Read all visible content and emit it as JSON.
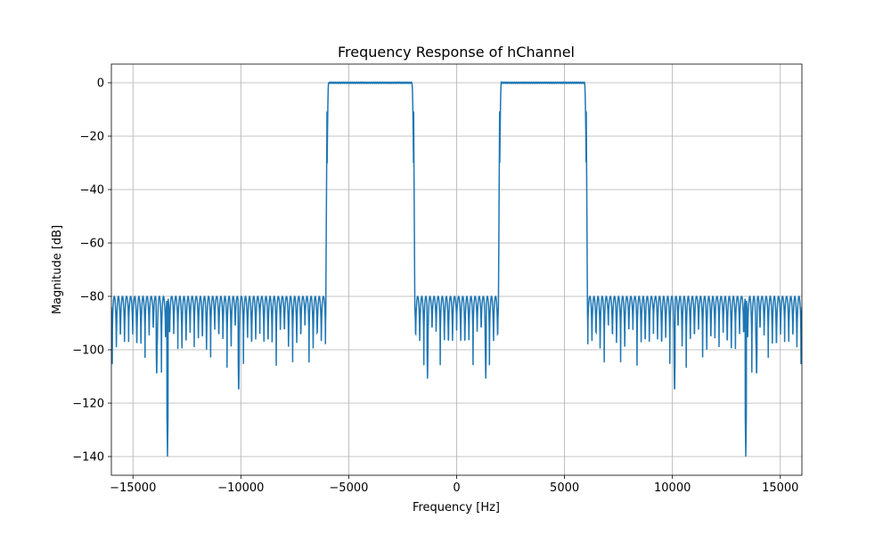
{
  "chart_data": {
    "type": "line",
    "title": "Frequency Response of hChannel",
    "xlabel": "Frequency [Hz]",
    "ylabel": "Magnitude [dB]",
    "xlim": [
      -16000,
      16000
    ],
    "ylim": [
      -147,
      7
    ],
    "xticks": [
      -15000,
      -10000,
      -5000,
      0,
      5000,
      10000,
      15000
    ],
    "xtick_labels": [
      "−15000",
      "−10000",
      "−5000",
      "0",
      "5000",
      "10000",
      "15000"
    ],
    "yticks": [
      0,
      -20,
      -40,
      -60,
      -80,
      -100,
      -120,
      -140
    ],
    "ytick_labels": [
      "0",
      "−20",
      "−40",
      "−60",
      "−80",
      "−100",
      "−120",
      "−140"
    ],
    "grid": true,
    "line_color": "#1f77b4",
    "passbands": [
      [
        -6000,
        -2000
      ],
      [
        2000,
        6000
      ]
    ],
    "passband_level": 0,
    "stopband_sidelobe_peak": -80,
    "deep_nulls": [
      [
        -13400,
        -140
      ],
      [
        13400,
        -140
      ],
      [
        -10100,
        -117
      ],
      [
        10100,
        -117
      ],
      [
        -13900,
        -111
      ],
      [
        13900,
        -111
      ],
      [
        -1350,
        -112
      ],
      [
        1350,
        -112
      ]
    ]
  }
}
